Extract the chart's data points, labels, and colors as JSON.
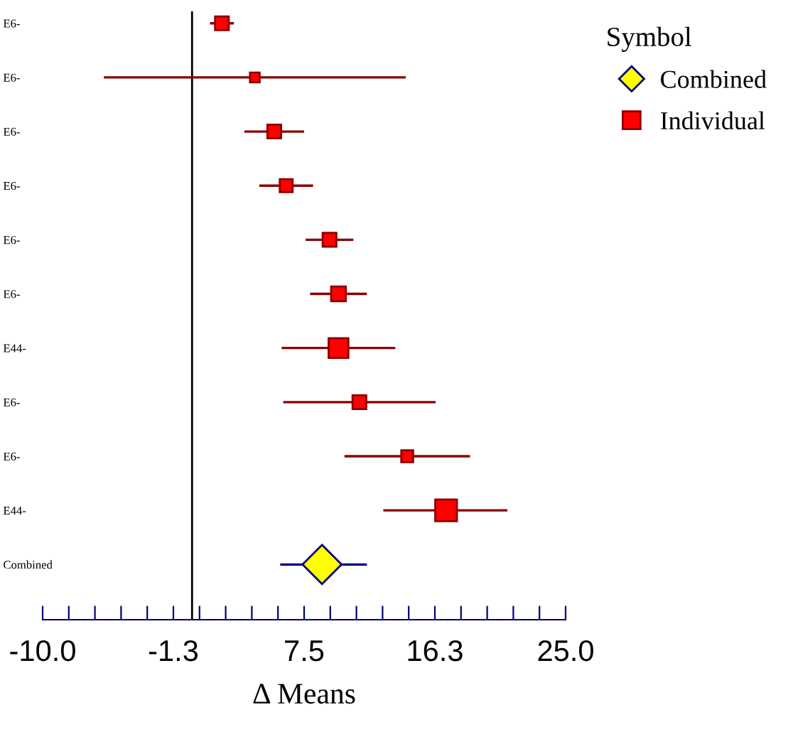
{
  "chart_data": {
    "type": "scatter",
    "orientation": "horizontal",
    "categories": [
      "E6-",
      "E6-",
      "E6-",
      "E6-",
      "E6-",
      "E6-",
      "E44-",
      "E6-",
      "E6-",
      "E44-",
      "Combined"
    ],
    "xlabel": "Δ Means",
    "legend_title": "Symbol",
    "legend": "top right",
    "grid": false,
    "xlim": [
      -10,
      25
    ],
    "xticks": [
      {
        "value": -10,
        "label": "-10.0"
      },
      {
        "value": -8.25,
        "label": null
      },
      {
        "value": -6.5,
        "label": null
      },
      {
        "value": -4.75,
        "label": null
      },
      {
        "value": -3.0,
        "label": null
      },
      {
        "value": -1.25,
        "label": "-1.3"
      },
      {
        "value": 0.5,
        "label": null
      },
      {
        "value": 2.25,
        "label": null
      },
      {
        "value": 4.0,
        "label": null
      },
      {
        "value": 5.75,
        "label": null
      },
      7.5,
      {
        "value": 9.25,
        "label": null
      },
      {
        "value": 11.0,
        "label": null
      },
      {
        "value": 12.75,
        "label": null
      },
      {
        "value": 14.5,
        "label": null
      },
      {
        "value": 16.25,
        "label": "16.3"
      },
      {
        "value": 18.0,
        "label": null
      },
      {
        "value": 19.75,
        "label": null
      },
      {
        "value": 21.5,
        "label": null
      },
      {
        "value": 23.25,
        "label": null
      },
      {
        "value": 25,
        "label": "25.0"
      }
    ],
    "ref_lines": [
      {
        "axis": "x",
        "value": 0,
        "color": "#000000"
      }
    ],
    "series": [
      {
        "name": "Combined",
        "color": "#ffff00",
        "marker": "diamond",
        "values": [
          null,
          null,
          null,
          null,
          null,
          null,
          null,
          null,
          null,
          null,
          8.7
        ],
        "errors": [
          null,
          null,
          null,
          null,
          null,
          null,
          null,
          null,
          null,
          null,
          [
            5.9,
            11.7
          ]
        ]
      },
      {
        "name": "Individual",
        "color": "#ff0000",
        "marker": "square",
        "values": [
          2.0,
          4.2,
          5.5,
          6.3,
          9.2,
          9.8,
          9.8,
          11.2,
          14.4,
          17.0,
          null
        ],
        "errors": [
          [
            1.2,
            2.8
          ],
          [
            -5.9,
            14.3
          ],
          [
            3.5,
            7.5
          ],
          [
            4.5,
            8.1
          ],
          [
            7.6,
            10.8
          ],
          [
            7.9,
            11.7
          ],
          [
            6.0,
            13.6
          ],
          [
            6.1,
            16.3
          ],
          [
            10.2,
            18.6
          ],
          [
            12.8,
            21.1
          ],
          null
        ],
        "sizes": [
          0.4,
          0.2,
          0.4,
          0.35,
          0.4,
          0.46,
          0.83,
          0.4,
          0.3,
          1,
          null
        ]
      }
    ]
  }
}
